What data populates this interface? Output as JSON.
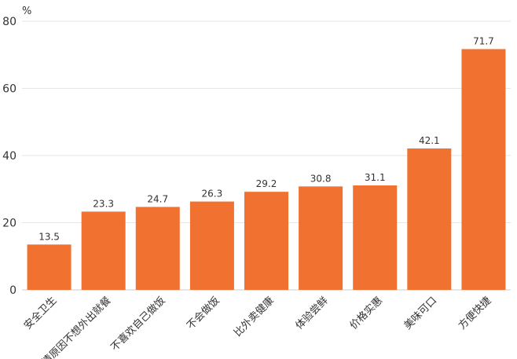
{
  "chart_data": {
    "type": "bar",
    "unit_label": "%",
    "categories": [
      "安全卫生",
      "疫情原因不想外出就餐",
      "不喜欢自己做饭",
      "不会做饭",
      "比外卖健康",
      "体验尝鲜",
      "价格实惠",
      "美味可口",
      "方便快捷"
    ],
    "values": [
      13.5,
      23.3,
      24.7,
      26.3,
      29.2,
      30.8,
      31.1,
      42.1,
      71.7
    ],
    "data_labels": [
      "13.5",
      "23.3",
      "24.7",
      "26.3",
      "29.2",
      "30.8",
      "31.1",
      "42.1",
      "71.7"
    ],
    "y_ticks": [
      "0",
      "20",
      "40",
      "60",
      "80"
    ],
    "ylim": [
      0,
      80
    ],
    "grid": true,
    "colors": {
      "bar": "#F07130",
      "grid": "#e6e6e6",
      "axis": "#cccccc",
      "text": "#333333"
    }
  }
}
